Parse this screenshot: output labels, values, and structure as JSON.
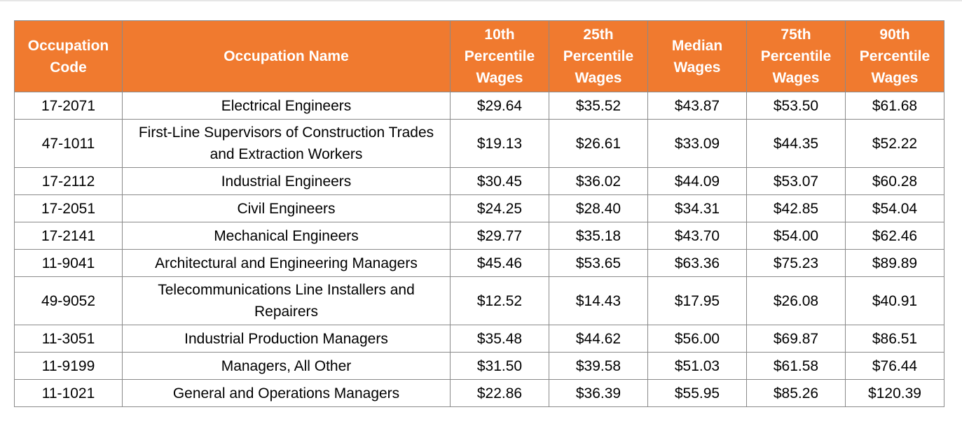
{
  "table": {
    "headers": [
      "Occupation Code",
      "Occupation Name",
      "10th Percentile Wages",
      "25th Percentile Wages",
      "Median Wages",
      "75th Percentile Wages",
      "90th Percentile Wages"
    ],
    "rows": [
      [
        "17-2071",
        "Electrical Engineers",
        "$29.64",
        "$35.52",
        "$43.87",
        "$53.50",
        "$61.68"
      ],
      [
        "47-1011",
        "First-Line Supervisors of Construction Trades and Extraction Workers",
        "$19.13",
        "$26.61",
        "$33.09",
        "$44.35",
        "$52.22"
      ],
      [
        "17-2112",
        "Industrial Engineers",
        "$30.45",
        "$36.02",
        "$44.09",
        "$53.07",
        "$60.28"
      ],
      [
        "17-2051",
        "Civil Engineers",
        "$24.25",
        "$28.40",
        "$34.31",
        "$42.85",
        "$54.04"
      ],
      [
        "17-2141",
        "Mechanical Engineers",
        "$29.77",
        "$35.18",
        "$43.70",
        "$54.00",
        "$62.46"
      ],
      [
        "11-9041",
        "Architectural and Engineering Managers",
        "$45.46",
        "$53.65",
        "$63.36",
        "$75.23",
        "$89.89"
      ],
      [
        "49-9052",
        "Telecommunications Line Installers and Repairers",
        "$12.52",
        "$14.43",
        "$17.95",
        "$26.08",
        "$40.91"
      ],
      [
        "11-3051",
        "Industrial Production Managers",
        "$35.48",
        "$44.62",
        "$56.00",
        "$69.87",
        "$86.51"
      ],
      [
        "11-9199",
        "Managers, All Other",
        "$31.50",
        "$39.58",
        "$51.03",
        "$61.58",
        "$76.44"
      ],
      [
        "11-1021",
        "General and Operations Managers",
        "$22.86",
        "$36.39",
        "$55.95",
        "$85.26",
        "$120.39"
      ]
    ]
  }
}
